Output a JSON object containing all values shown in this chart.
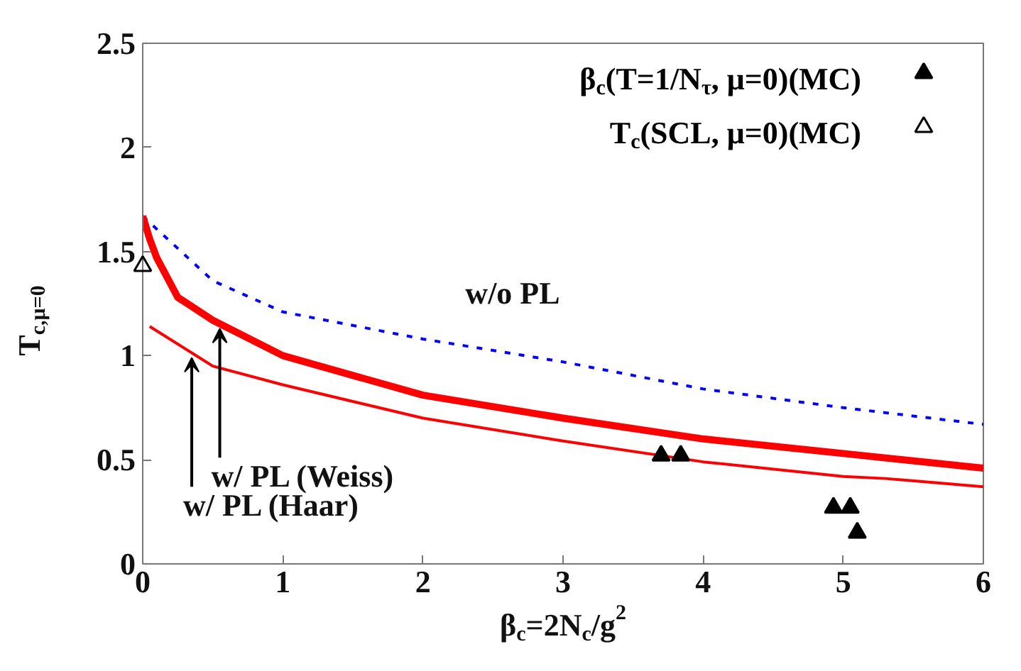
{
  "chart_data": {
    "type": "line",
    "xlabel": "β$_{c}$=2N$_{c}$/g$^{2}$",
    "ylabel": "T$_{c,μ=0}$",
    "xlim": [
      0,
      6
    ],
    "xticks": [
      0,
      1,
      2,
      3,
      4,
      5,
      6
    ],
    "ylim": [
      0,
      2.5
    ],
    "yticks": [
      0,
      0.5,
      1,
      1.5,
      2,
      2.5
    ],
    "grid": false,
    "legend": "top right",
    "series": [
      {
        "color": "#0000ff",
        "line_style": "dashed",
        "x": [
          0,
          0.5,
          1,
          2,
          3,
          4,
          5,
          6
        ],
        "values": [
          1.67,
          1.36,
          1.21,
          1.08,
          0.97,
          0.84,
          0.75,
          0.67
        ]
      },
      {
        "color": "#ff0000",
        "line_style": "solid",
        "x": [
          0,
          0.05,
          0.1,
          0.25,
          0.5,
          1,
          2,
          3,
          4,
          5,
          6
        ],
        "values": [
          1.67,
          1.56,
          1.47,
          1.28,
          1.17,
          1.0,
          0.81,
          0.7,
          0.6,
          0.53,
          0.46
        ]
      },
      {
        "color": "#ff0000",
        "line_style": "solid",
        "x": [
          0.05,
          0.5,
          1,
          2,
          3,
          4,
          5,
          5.3,
          6
        ],
        "values": [
          1.14,
          0.95,
          0.86,
          0.7,
          0.59,
          0.49,
          0.42,
          0.41,
          0.37
        ]
      },
      {
        "type": "scatter",
        "name": "β$_{c}$(T=1/N$_{τ}$, μ=0)(MC)",
        "color": "#000000",
        "marker": "triangle",
        "x": [
          3.7,
          3.84,
          4.93,
          5.05,
          5.1
        ],
        "values": [
          0.52,
          0.52,
          0.27,
          0.27,
          0.15
        ]
      },
      {
        "type": "scatter",
        "name": "T$_{c}$(SCL, μ=0)(MC)",
        "color": "#000000",
        "marker": "triangle",
        "x": [
          0
        ],
        "values": [
          1.43
        ]
      }
    ],
    "annotations": [
      "w/o PL",
      {
        "text": "w/ PL (Weiss)",
        "x": 0.55,
        "y": 1.13
      },
      {
        "text": "w/ PL (Haar)",
        "x": 0.35,
        "y": 0.99
      }
    ]
  }
}
